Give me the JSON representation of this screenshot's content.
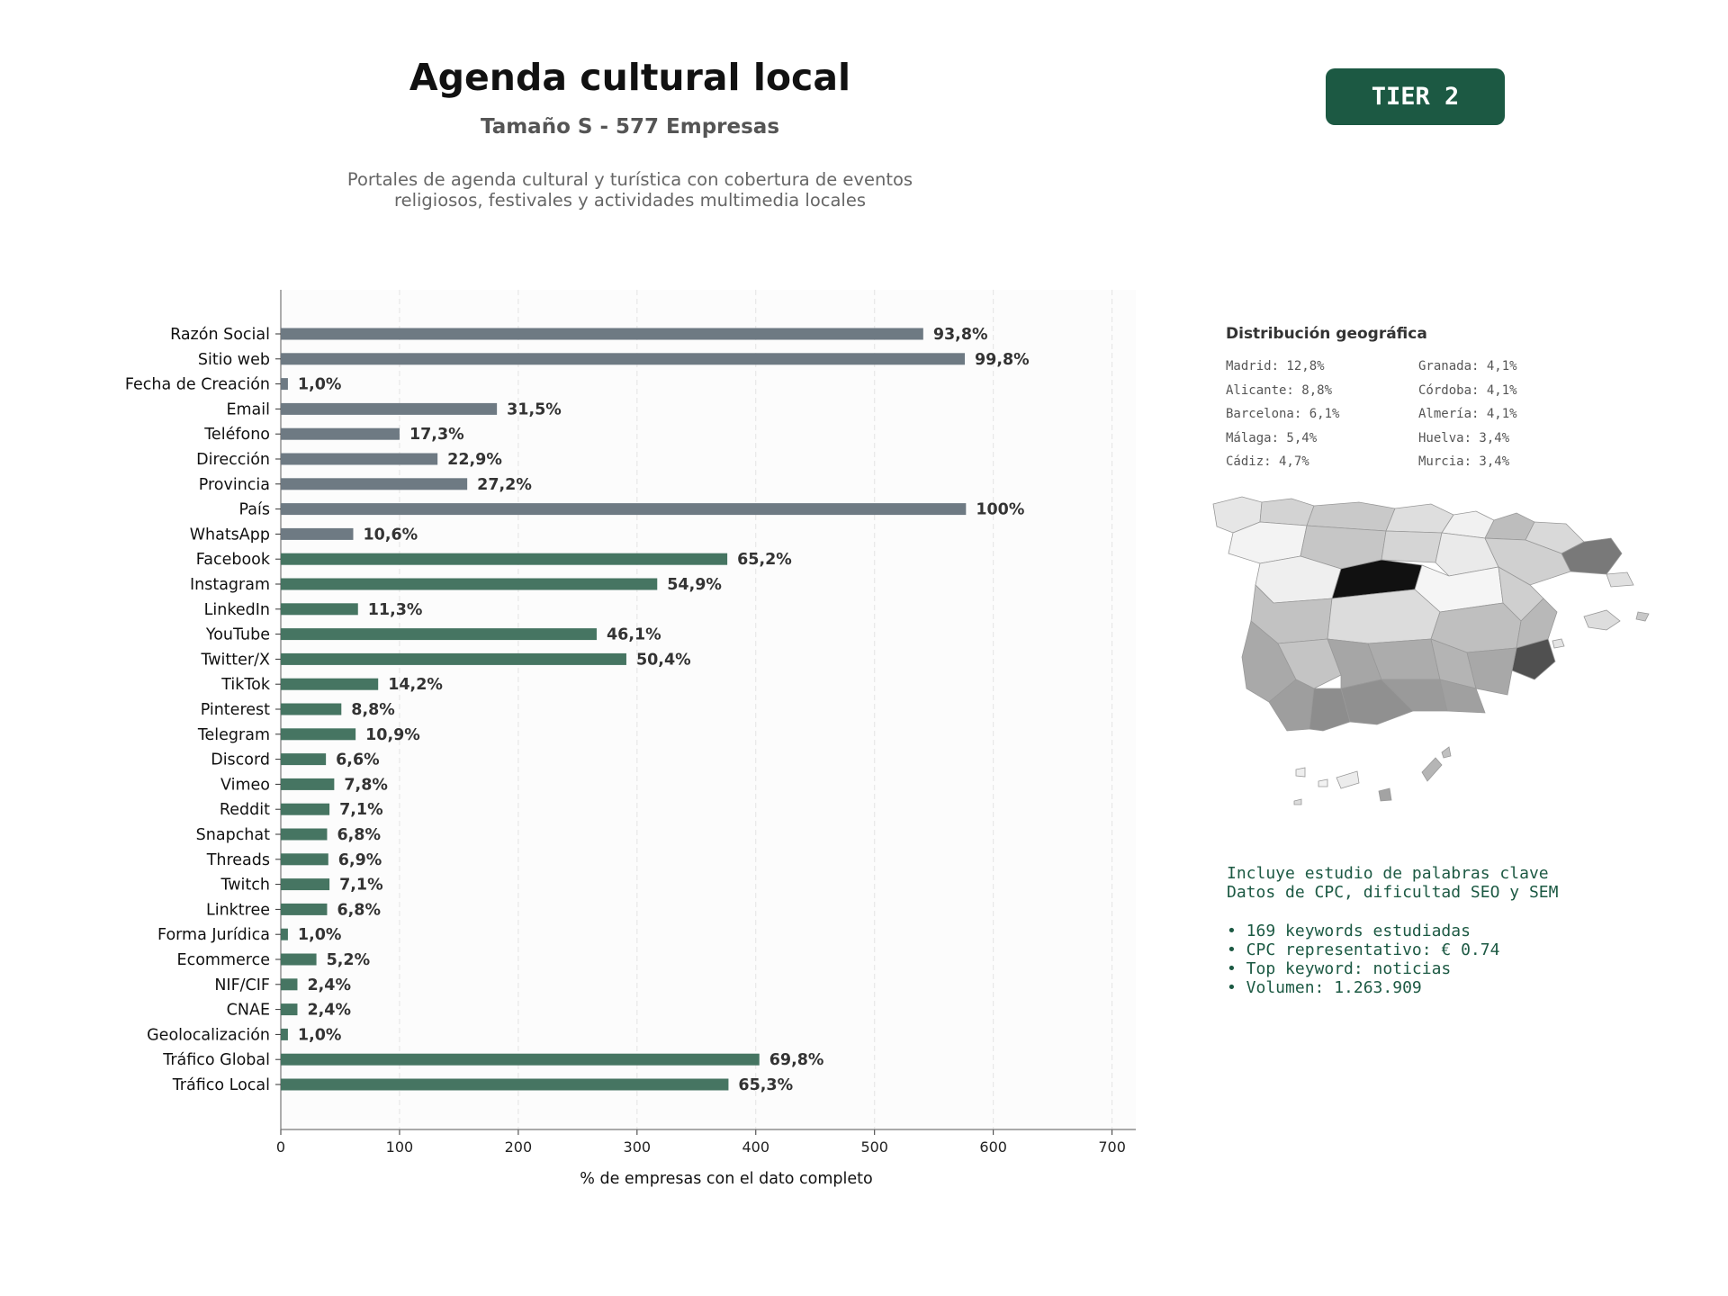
{
  "header": {
    "title": "Agenda cultural local",
    "subtitle": "Tamaño S - 577 Empresas",
    "description_lines": [
      "Portales de agenda cultural y turística con cobertura de eventos",
      "religiosos, festivales y actividades multimedia locales"
    ],
    "tier_badge": "TIER 2"
  },
  "colors": {
    "gray_bar": "#6e7a83",
    "green_bar": "#467562",
    "accent": "#1c5943"
  },
  "chart_data": {
    "type": "bar",
    "orientation": "horizontal",
    "xlabel": "% de empresas con el dato completo",
    "xlim": [
      0,
      720
    ],
    "xticks": [
      0,
      100,
      200,
      300,
      400,
      500,
      600,
      700
    ],
    "grid": "vertical dashed",
    "categories": [
      "Razón Social",
      "Sitio web",
      "Fecha de Creación",
      "Email",
      "Teléfono",
      "Dirección",
      "Provincia",
      "País",
      "WhatsApp",
      "Facebook",
      "Instagram",
      "LinkedIn",
      "YouTube",
      "Twitter/X",
      "TikTok",
      "Pinterest",
      "Telegram",
      "Discord",
      "Vimeo",
      "Reddit",
      "Snapchat",
      "Threads",
      "Twitch",
      "Linktree",
      "Forma Jurídica",
      "Ecommerce",
      "NIF/CIF",
      "CNAE",
      "Geolocalización",
      "Tráfico Global",
      "Tráfico Local"
    ],
    "values": [
      541,
      576,
      6,
      182,
      100,
      132,
      157,
      577,
      61,
      376,
      317,
      65,
      266,
      291,
      82,
      51,
      63,
      38,
      45,
      41,
      39,
      40,
      41,
      39,
      6,
      30,
      14,
      14,
      6,
      403,
      377
    ],
    "labels": [
      "93,8%",
      "99,8%",
      "1,0%",
      "31,5%",
      "17,3%",
      "22,9%",
      "27,2%",
      "100%",
      "10,6%",
      "65,2%",
      "54,9%",
      "11,3%",
      "46,1%",
      "50,4%",
      "14,2%",
      "8,8%",
      "10,9%",
      "6,6%",
      "7,8%",
      "7,1%",
      "6,8%",
      "6,9%",
      "7,1%",
      "6,8%",
      "1,0%",
      "5,2%",
      "2,4%",
      "2,4%",
      "1,0%",
      "69,8%",
      "65,3%"
    ],
    "groups": [
      "gray",
      "gray",
      "gray",
      "gray",
      "gray",
      "gray",
      "gray",
      "gray",
      "gray",
      "green",
      "green",
      "green",
      "green",
      "green",
      "green",
      "green",
      "green",
      "green",
      "green",
      "green",
      "green",
      "green",
      "green",
      "green",
      "green",
      "green",
      "green",
      "green",
      "green",
      "green",
      "green"
    ]
  },
  "geo": {
    "title": "Distribución geográfica",
    "items": [
      "Madrid: 12,8%",
      "Granada: 4,1%",
      "Alicante: 8,8%",
      "Córdoba: 4,1%",
      "Barcelona: 6,1%",
      "Almería: 4,1%",
      "Málaga: 5,4%",
      "Huelva: 3,4%",
      "Cádiz: 4,7%",
      "Murcia: 3,4%"
    ]
  },
  "keywords": {
    "lines": [
      "Incluye estudio de palabras clave",
      "Datos de CPC, dificultad SEO y SEM",
      "",
      "• 169 keywords estudiadas",
      "• CPC representativo: € 0.74",
      "• Top keyword: noticias",
      "• Volumen: 1.263.909"
    ]
  }
}
